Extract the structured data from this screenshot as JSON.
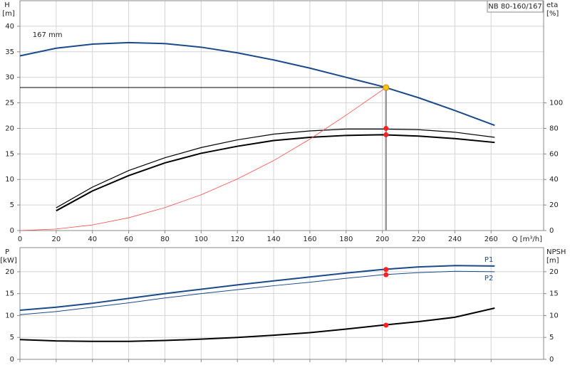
{
  "chart_data": [
    {
      "type": "line",
      "model_label": "NB 80-160/167",
      "y_label": "H",
      "y_unit": "[m]",
      "y2_label": "eta",
      "y2_unit": "[%]",
      "x_label": "Q [m³/h]",
      "annotation": "167 mm",
      "xlim": [
        0,
        289
      ],
      "xticks": [
        0,
        20,
        40,
        60,
        80,
        100,
        120,
        140,
        160,
        180,
        200,
        220,
        240,
        260
      ],
      "ylim": [
        0,
        45
      ],
      "yticks": [
        0,
        5,
        10,
        15,
        20,
        25,
        30,
        35,
        40
      ],
      "y2lim": [
        0,
        180
      ],
      "y2ticks": [
        0,
        20,
        40,
        60,
        80,
        100
      ],
      "grid": true,
      "show_xtick_labels": true,
      "duty_point": {
        "x": 202,
        "y": 28,
        "color": "#f5c518"
      },
      "series": [
        {
          "color": "#1a4a8a",
          "width": 2,
          "axis": "y",
          "x": [
            0,
            20,
            40,
            60,
            80,
            100,
            120,
            140,
            160,
            180,
            200,
            220,
            240,
            262
          ],
          "values": [
            34.2,
            35.7,
            36.5,
            36.8,
            36.6,
            35.9,
            34.8,
            33.4,
            31.8,
            30.0,
            28.2,
            26.0,
            23.5,
            20.6
          ]
        },
        {
          "color": "#000000",
          "width": 1.2,
          "axis": "y2",
          "x": [
            20,
            40,
            60,
            80,
            100,
            120,
            140,
            160,
            180,
            200,
            220,
            240,
            262
          ],
          "values": [
            17.8,
            34,
            47,
            57,
            65,
            71,
            75.5,
            78,
            79.5,
            79.5,
            79,
            77,
            73
          ]
        },
        {
          "color": "#000000",
          "width": 2,
          "axis": "y2",
          "x": [
            20,
            40,
            60,
            80,
            100,
            120,
            140,
            160,
            180,
            200,
            220,
            240,
            262
          ],
          "values": [
            15.5,
            31,
            43,
            53,
            60.5,
            66,
            70.5,
            73,
            74.5,
            75,
            74,
            72,
            69
          ]
        },
        {
          "color": "#ff4a4a",
          "width": 0.8,
          "axis": "y",
          "x": [
            0,
            20,
            40,
            60,
            80,
            100,
            120,
            140,
            160,
            180,
            202
          ],
          "values": [
            0,
            0.3,
            1.1,
            2.5,
            4.5,
            7,
            10.1,
            13.7,
            17.9,
            22.6,
            28
          ]
        }
      ],
      "markers": [
        {
          "x": 202,
          "y": 80,
          "axis": "y2",
          "color": "#ff2020"
        },
        {
          "x": 202,
          "y": 75,
          "axis": "y2",
          "color": "#ff2020"
        }
      ]
    },
    {
      "type": "line",
      "y_label": "P",
      "y_unit": "[kW]",
      "y2_label": "NPSH",
      "y2_unit": "[m]",
      "xlim": [
        0,
        289
      ],
      "xticks": [
        0,
        20,
        40,
        60,
        80,
        100,
        120,
        140,
        160,
        180,
        200,
        220,
        240,
        260
      ],
      "ylim": [
        0,
        25.5
      ],
      "yticks": [
        0,
        5,
        10,
        15,
        20
      ],
      "y2lim": [
        0,
        25.5
      ],
      "y2ticks": [
        0,
        5,
        10,
        15,
        20
      ],
      "grid": true,
      "show_xtick_labels": false,
      "series": [
        {
          "name": "P1",
          "color": "#1a4a8a",
          "width": 2,
          "axis": "y",
          "x": [
            0,
            20,
            40,
            60,
            80,
            100,
            120,
            140,
            160,
            180,
            200,
            220,
            240,
            262
          ],
          "values": [
            11.2,
            11.9,
            12.8,
            13.9,
            15.0,
            16.0,
            17.0,
            17.9,
            18.8,
            19.7,
            20.5,
            21.1,
            21.4,
            21.3
          ]
        },
        {
          "name": "P2",
          "color": "#1a4a8a",
          "width": 1,
          "axis": "y",
          "x": [
            0,
            20,
            40,
            60,
            80,
            100,
            120,
            140,
            160,
            180,
            200,
            220,
            240,
            262
          ],
          "values": [
            10.2,
            10.9,
            11.9,
            12.9,
            14.0,
            15.0,
            15.9,
            16.8,
            17.6,
            18.5,
            19.3,
            19.8,
            20.1,
            20.0
          ]
        },
        {
          "color": "#000000",
          "width": 2,
          "axis": "y2",
          "x": [
            0,
            20,
            40,
            60,
            80,
            100,
            120,
            140,
            160,
            180,
            200,
            220,
            240,
            262
          ],
          "values": [
            4.5,
            4.2,
            4.1,
            4.1,
            4.3,
            4.6,
            5.0,
            5.5,
            6.1,
            6.9,
            7.8,
            8.6,
            9.6,
            11.7
          ]
        }
      ],
      "markers": [
        {
          "x": 202,
          "y": 20.5,
          "axis": "y",
          "color": "#ff2020"
        },
        {
          "x": 202,
          "y": 19.3,
          "axis": "y",
          "color": "#ff2020"
        },
        {
          "x": 202,
          "y": 7.8,
          "axis": "y2",
          "color": "#ff2020"
        }
      ]
    }
  ]
}
